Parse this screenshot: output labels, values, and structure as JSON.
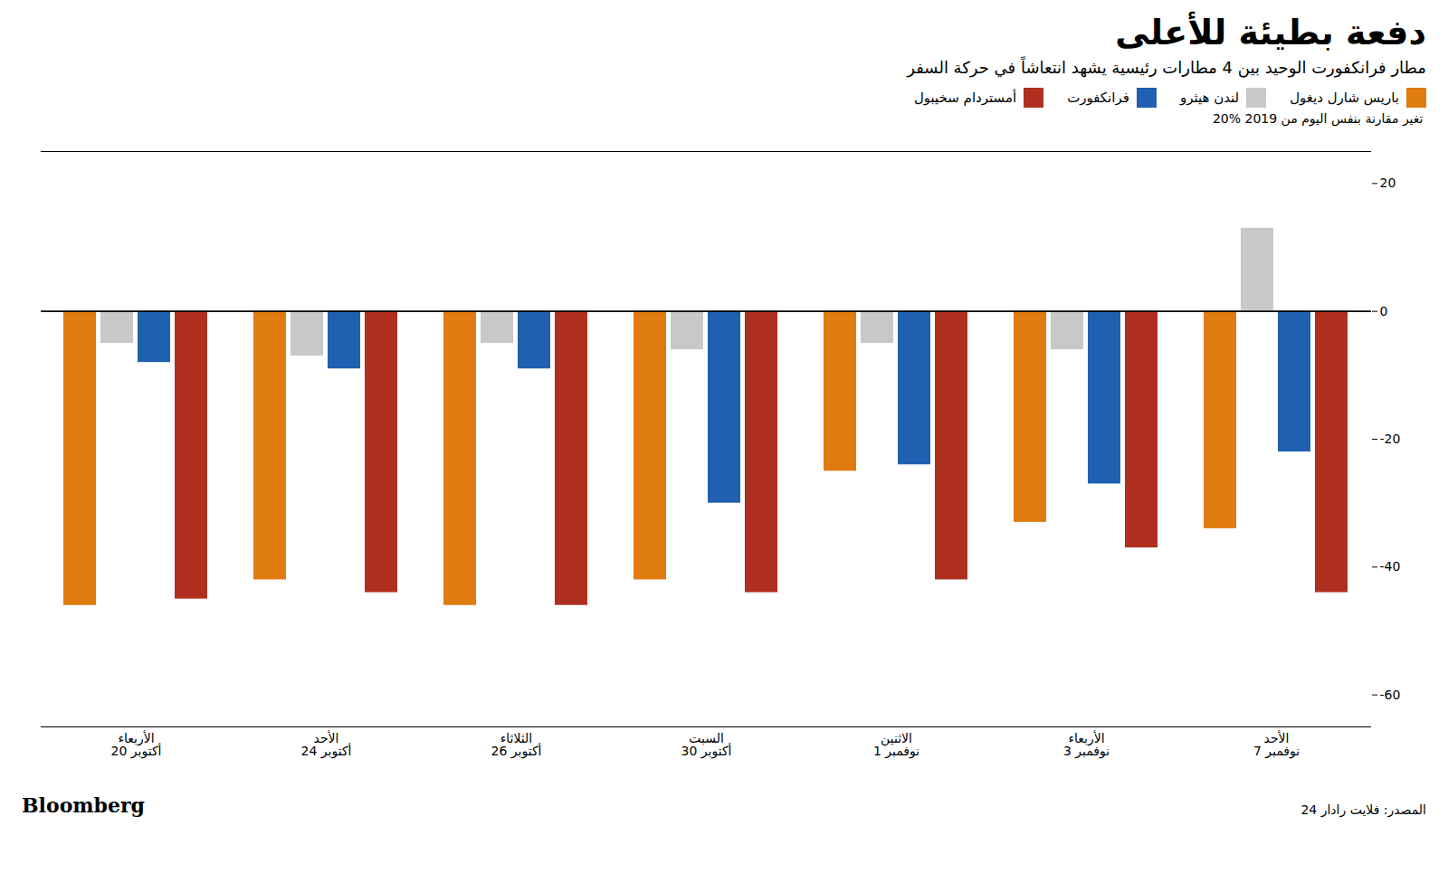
{
  "chart_data": {
    "type": "bar",
    "title": "دفعة بطيئة للأعلى",
    "subtitle": "مطار فرانكفورت الوحيد بين 4 مطارات رئيسية يشهد انتعاشاً في حركة السفر",
    "ylabel": "20% تغير مقارنة بنفس اليوم من 2019",
    "annotations": [
      "المصدر: فلايت رادار 24",
      "Bloomberg"
    ],
    "categories": [
      "الأربعاء\n20 أكتوبر",
      "الأحد\n24 أكتوبر",
      "الثلاثاء\n26 أكتوبر",
      "السبت\n30 أكتوبر",
      "الاثنين\n1 نوفمبر",
      "الأربعاء\n3 نوفمبر",
      "الأحد\n7 نوفمبر"
    ],
    "series": [
      {
        "name": "باريس شارل ديغول",
        "color": "#E07B10",
        "values": [
          -46,
          -42,
          -46,
          -42,
          -25,
          -33,
          -34
        ]
      },
      {
        "name": "لندن هيثرو",
        "color": "#c8c8c8",
        "values": [
          -5,
          -7,
          -5,
          -6,
          -5,
          -6,
          13
        ]
      },
      {
        "name": "فرانكفورت",
        "color": "#2060B0",
        "values": [
          -8,
          -9,
          -9,
          -30,
          -24,
          -27,
          -22
        ]
      },
      {
        "name": "أمستردام سخيبول",
        "color": "#B03020",
        "values": [
          -45,
          -44,
          -46,
          -44,
          -42,
          -37,
          -44
        ]
      }
    ],
    "ylim": [
      -65,
      25
    ],
    "yticks": [
      20,
      0,
      -20,
      -40,
      -60
    ],
    "grid": false
  }
}
